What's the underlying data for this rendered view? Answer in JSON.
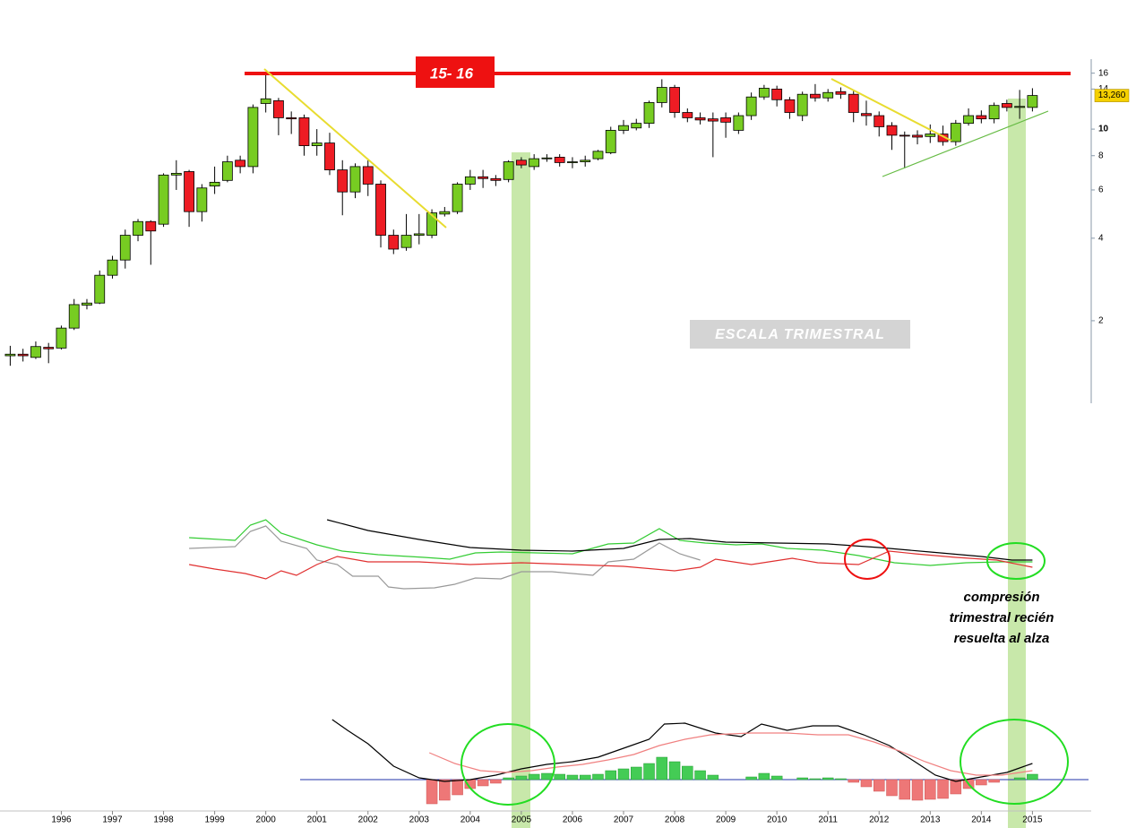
{
  "chart_data": [
    {
      "type": "candlestick",
      "log_scale": true,
      "x": [
        1995.0,
        1995.25,
        1995.5,
        1995.75,
        1996.0,
        1996.25,
        1996.5,
        1996.75,
        1997.0,
        1997.25,
        1997.5,
        1997.75,
        1998.0,
        1998.25,
        1998.5,
        1998.75,
        1999.0,
        1999.25,
        1999.5,
        1999.75,
        2000.0,
        2000.25,
        2000.5,
        2000.75,
        2001.0,
        2001.25,
        2001.5,
        2001.75,
        2002.0,
        2002.25,
        2002.5,
        2002.75,
        2003.0,
        2003.25,
        2003.5,
        2003.75,
        2004.0,
        2004.25,
        2004.5,
        2004.75,
        2005.0,
        2005.25,
        2005.5,
        2005.75,
        2006.0,
        2006.25,
        2006.5,
        2006.75,
        2007.0,
        2007.25,
        2007.5,
        2007.75,
        2008.0,
        2008.25,
        2008.5,
        2008.75,
        2009.0,
        2009.25,
        2009.5,
        2009.75,
        2010.0,
        2010.25,
        2010.5,
        2010.75,
        2011.0,
        2011.25,
        2011.5,
        2011.75,
        2012.0,
        2012.25,
        2012.5,
        2012.75,
        2013.0,
        2013.25,
        2013.5,
        2013.75,
        2014.0,
        2014.25,
        2014.5,
        2014.75,
        2015.0
      ],
      "open": [
        1.49,
        1.51,
        1.47,
        1.6,
        1.59,
        1.88,
        2.28,
        2.32,
        2.93,
        3.33,
        4.1,
        4.6,
        4.5,
        6.8,
        7.0,
        5.0,
        6.2,
        6.5,
        7.7,
        7.3,
        12.4,
        12.7,
        11.0,
        11.0,
        8.7,
        8.9,
        7.1,
        5.9,
        7.3,
        6.3,
        4.1,
        3.7,
        4.1,
        4.1,
        4.9,
        5.0,
        6.3,
        6.7,
        6.6,
        6.55,
        7.7,
        7.3,
        7.8,
        7.9,
        7.55,
        7.6,
        7.8,
        8.2,
        9.9,
        10.1,
        10.5,
        12.5,
        14.2,
        11.5,
        11.0,
        10.9,
        11.0,
        9.9,
        11.2,
        13.1,
        14.0,
        12.8,
        11.2,
        13.4,
        13.0,
        13.7,
        13.4,
        11.4,
        11.2,
        10.3,
        9.5,
        9.5,
        9.4,
        9.6,
        9.0,
        10.5,
        11.2,
        10.9,
        12.4,
        12.0,
        12.0
      ],
      "high": [
        1.62,
        1.58,
        1.68,
        1.66,
        1.92,
        2.4,
        2.4,
        3.05,
        3.45,
        4.3,
        4.7,
        4.65,
        6.9,
        7.7,
        7.1,
        6.3,
        7.3,
        8.0,
        8.0,
        12.3,
        15.8,
        13.0,
        11.6,
        11.3,
        10.0,
        9.7,
        7.7,
        7.5,
        7.7,
        6.5,
        4.3,
        4.9,
        4.9,
        5.1,
        5.2,
        6.4,
        7.1,
        7.1,
        6.8,
        7.7,
        7.9,
        8.1,
        8.1,
        8.1,
        7.9,
        8.0,
        8.4,
        10.2,
        10.8,
        10.9,
        12.7,
        15.2,
        14.5,
        11.9,
        11.5,
        11.5,
        11.5,
        11.5,
        13.6,
        14.5,
        14.4,
        13.1,
        13.7,
        14.6,
        14.0,
        14.2,
        13.8,
        12.7,
        11.6,
        10.6,
        9.8,
        9.9,
        10.4,
        10.3,
        10.8,
        11.9,
        11.7,
        12.5,
        12.8,
        13.9,
        14.1
      ],
      "low": [
        1.37,
        1.42,
        1.45,
        1.4,
        1.57,
        1.85,
        2.2,
        2.3,
        2.85,
        3.1,
        3.9,
        3.2,
        4.4,
        6.0,
        4.4,
        4.6,
        5.8,
        6.4,
        6.9,
        6.9,
        11.5,
        9.5,
        9.6,
        8.0,
        8.0,
        6.8,
        4.85,
        5.6,
        5.7,
        3.7,
        3.5,
        3.6,
        3.8,
        4.0,
        4.8,
        4.9,
        6.0,
        6.1,
        6.2,
        6.4,
        7.2,
        7.1,
        7.6,
        7.3,
        7.2,
        7.3,
        7.7,
        8.1,
        9.6,
        9.9,
        10.1,
        12.0,
        11.0,
        10.6,
        10.4,
        7.9,
        9.3,
        9.6,
        10.8,
        12.8,
        12.1,
        10.9,
        10.7,
        12.6,
        12.6,
        12.9,
        10.6,
        10.3,
        9.4,
        8.4,
        7.2,
        8.8,
        8.9,
        8.7,
        8.7,
        10.3,
        10.5,
        10.5,
        11.6,
        10.9,
        11.6
      ],
      "close": [
        1.51,
        1.49,
        1.61,
        1.58,
        1.88,
        2.29,
        2.32,
        2.93,
        3.33,
        4.1,
        4.6,
        4.25,
        6.8,
        6.9,
        5.0,
        6.1,
        6.4,
        7.6,
        7.3,
        12.0,
        12.9,
        11.0,
        10.9,
        8.7,
        8.9,
        7.1,
        5.9,
        7.3,
        6.3,
        4.1,
        3.65,
        4.1,
        4.15,
        4.95,
        5.0,
        6.3,
        6.7,
        6.6,
        6.5,
        7.6,
        7.4,
        7.8,
        7.85,
        7.55,
        7.6,
        7.7,
        8.3,
        9.9,
        10.3,
        10.5,
        12.5,
        14.2,
        11.5,
        11.0,
        10.8,
        10.7,
        10.6,
        11.2,
        13.1,
        14.1,
        12.8,
        11.5,
        13.4,
        13.0,
        13.6,
        13.4,
        11.5,
        11.2,
        10.2,
        9.5,
        9.45,
        9.35,
        9.6,
        9.0,
        10.5,
        11.2,
        10.9,
        12.2,
        12.0,
        12.1,
        13.26
      ],
      "up_color": "#77cc22",
      "down_color": "#ee1c24",
      "xlim": [
        1994.8,
        2016.15
      ],
      "ylim": [
        1,
        18
      ],
      "xticks": [
        1996,
        1997,
        1998,
        1999,
        2000,
        2001,
        2002,
        2003,
        2004,
        2005,
        2006,
        2007,
        2008,
        2009,
        2010,
        2011,
        2012,
        2013,
        2014,
        2015
      ],
      "yticks": [
        2,
        4,
        6,
        8,
        10,
        14,
        16
      ],
      "last_price": {
        "value": 13.26,
        "label": "13,260"
      },
      "annotations": [
        "15- 16",
        "ESCALA TRIMESTRAL"
      ]
    },
    {
      "type": "line",
      "xlim": [
        1994.8,
        2016.15
      ],
      "ylim": [
        0,
        90
      ],
      "series": [
        {
          "color": "#33cc33",
          "x": [
            1998.5,
            1998.8,
            1999.4,
            1999.7,
            2000.0,
            2000.3,
            2001.0,
            2001.5,
            2002.2,
            2003.1,
            2003.6,
            2004.1,
            2004.6,
            2005.3,
            2006.0,
            2006.7,
            2007.2,
            2007.7,
            2008.1,
            2008.6,
            2009.2,
            2009.7,
            2010.2,
            2010.9,
            2011.6,
            2012.3,
            2013.0,
            2013.7,
            2014.4,
            2015.0
          ],
          "values": [
            60,
            59,
            57,
            74,
            80,
            65,
            52,
            45,
            41,
            38,
            36,
            43,
            44,
            43,
            42,
            53,
            54,
            70,
            57,
            54,
            52,
            53,
            48,
            46,
            40,
            32,
            29,
            32,
            33,
            33
          ]
        },
        {
          "color": "#999999",
          "x": [
            1998.5,
            1999.4,
            1999.7,
            2000.0,
            2000.3,
            2000.8,
            2001.0,
            2001.4,
            2001.7,
            2002.2,
            2002.4,
            2002.7,
            2003.3,
            2003.7,
            2004.1,
            2004.6,
            2005.0,
            2005.6,
            2006.0,
            2006.4,
            2006.7,
            2007.2,
            2007.7,
            2008.1,
            2008.5
          ],
          "values": [
            48,
            50,
            67,
            73,
            56,
            48,
            35,
            30,
            17,
            17,
            5,
            3,
            4,
            8,
            15,
            14,
            22,
            22,
            20,
            18,
            33,
            36,
            54,
            42,
            35
          ]
        },
        {
          "color": "#e03030",
          "x": [
            1998.5,
            1999.0,
            1999.6,
            2000.0,
            2000.3,
            2000.6,
            2001.0,
            2001.4,
            2002.0,
            2003.0,
            2004.0,
            2005.0,
            2006.0,
            2007.0,
            2008.0,
            2008.5,
            2008.8,
            2009.5,
            2010.3,
            2010.8,
            2011.6,
            2012.2,
            2012.7,
            2013.5,
            2014.3,
            2015.0
          ],
          "values": [
            30,
            25,
            20,
            14,
            23,
            18,
            30,
            39,
            33,
            33,
            30,
            32,
            30,
            28,
            23,
            27,
            36,
            30,
            37,
            32,
            30,
            45,
            42,
            38,
            35,
            27
          ]
        },
        {
          "color": "#000000",
          "x": [
            2001.2,
            2002.0,
            2003.0,
            2004.0,
            2005.0,
            2006.0,
            2007.0,
            2007.7,
            2008.3,
            2009.0,
            2010.0,
            2011.0,
            2012.0,
            2013.0,
            2014.0,
            2014.6,
            2015.0
          ],
          "values": [
            80,
            68,
            58,
            49,
            46,
            45,
            48,
            58,
            59,
            55,
            54,
            53,
            49,
            44,
            39,
            35,
            35
          ]
        }
      ],
      "annotations": [
        "compresión",
        "trimestral recién",
        "resuelta al alza"
      ]
    },
    {
      "type": "bar",
      "xlim": [
        1994.8,
        2016.15
      ],
      "ylim": [
        -40,
        80
      ],
      "up_color": "#44cc55",
      "down_color": "#ee7777",
      "x": [
        2003.25,
        2003.5,
        2003.75,
        2004.0,
        2004.25,
        2004.5,
        2004.75,
        2005.0,
        2005.25,
        2005.5,
        2005.75,
        2006.0,
        2006.25,
        2006.5,
        2006.75,
        2007.0,
        2007.25,
        2007.5,
        2007.75,
        2008.0,
        2008.25,
        2008.5,
        2008.75,
        2009.0,
        2009.25,
        2009.5,
        2009.75,
        2010.0,
        2010.25,
        2010.5,
        2010.75,
        2011.0,
        2011.25,
        2011.5,
        2011.75,
        2012.0,
        2012.25,
        2012.5,
        2012.75,
        2013.0,
        2013.25,
        2013.5,
        2013.75,
        2014.0,
        2014.25,
        2014.5,
        2014.75,
        2015.0
      ],
      "values": [
        -27,
        -23,
        -17,
        -10,
        -7,
        -4,
        2,
        4,
        6,
        7,
        6,
        5,
        5,
        6,
        10,
        12,
        14,
        18,
        25,
        20,
        15,
        10,
        5,
        0,
        0,
        3,
        7,
        4,
        0,
        2,
        1,
        2,
        1,
        -3,
        -8,
        -13,
        -18,
        -22,
        -23,
        -22,
        -21,
        -16,
        -10,
        -6,
        -3,
        0,
        2,
        6
      ],
      "series": [
        {
          "color": "#000000",
          "x": [
            2001.3,
            2001.6,
            2002.0,
            2002.5,
            2003.0,
            2003.5,
            2004.0,
            2004.5,
            2005.0,
            2005.5,
            2006.0,
            2006.5,
            2007.0,
            2007.5,
            2007.8,
            2008.2,
            2008.8,
            2009.3,
            2009.7,
            2010.2,
            2010.7,
            2011.2,
            2011.7,
            2012.2,
            2012.7,
            2013.1,
            2013.5,
            2014.0,
            2014.5,
            2015.0
          ],
          "values": [
            67,
            55,
            40,
            15,
            2,
            -2,
            0,
            5,
            12,
            17,
            20,
            25,
            35,
            45,
            62,
            63,
            52,
            48,
            62,
            55,
            60,
            60,
            50,
            38,
            20,
            5,
            -2,
            3,
            8,
            18
          ]
        },
        {
          "color": "#f08080",
          "x": [
            2003.2,
            2003.7,
            2004.2,
            2004.7,
            2005.2,
            2005.7,
            2006.2,
            2006.7,
            2007.2,
            2007.7,
            2008.2,
            2008.7,
            2009.5,
            2010.2,
            2010.8,
            2011.4,
            2011.9,
            2012.4,
            2012.9,
            2013.4,
            2013.9,
            2014.4,
            2015.0
          ],
          "values": [
            30,
            18,
            10,
            8,
            10,
            14,
            17,
            22,
            28,
            38,
            45,
            50,
            52,
            52,
            50,
            50,
            42,
            32,
            20,
            10,
            5,
            5,
            10
          ]
        }
      ]
    }
  ]
}
